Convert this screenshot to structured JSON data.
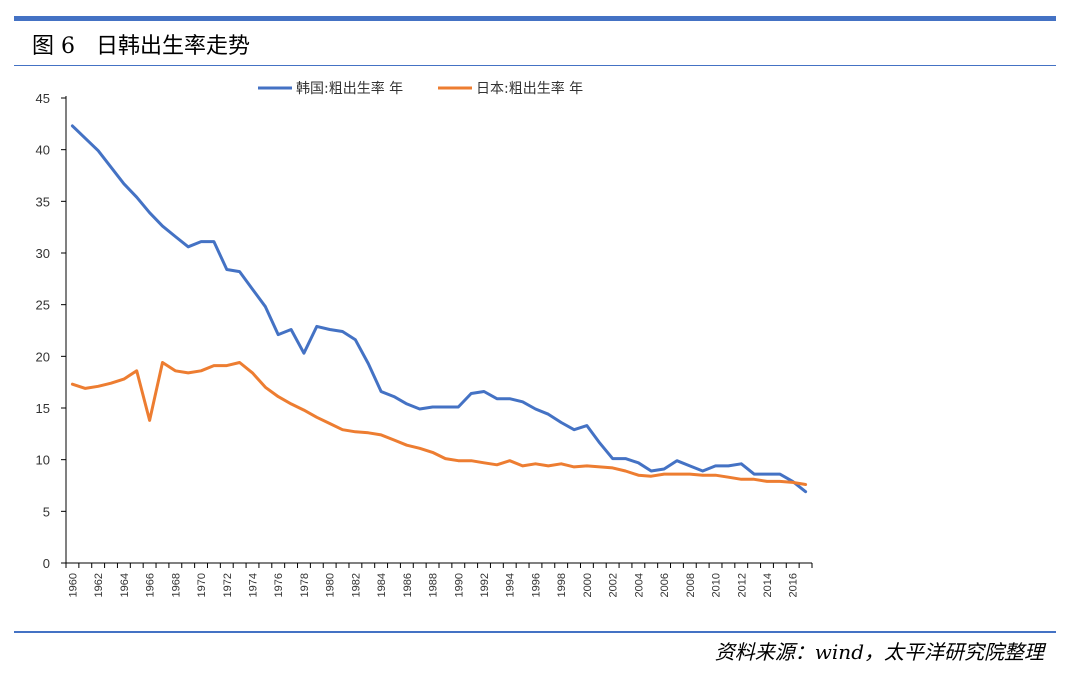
{
  "figure": {
    "title": "图 6   日韩出生率走势",
    "source": "资料来源：wind，太平洋研究院整理"
  },
  "chart_data": {
    "type": "line",
    "title": "",
    "xlabel": "",
    "ylabel": "",
    "ylim": [
      0,
      45
    ],
    "yticks": [
      0,
      5,
      10,
      15,
      20,
      25,
      30,
      35,
      40,
      45
    ],
    "xticks": [
      "1960",
      "1962",
      "1964",
      "1966",
      "1968",
      "1970",
      "1972",
      "1974",
      "1976",
      "1978",
      "1980",
      "1982",
      "1984",
      "1986",
      "1988",
      "1990",
      "1992",
      "1994",
      "1996",
      "1998",
      "2000",
      "2002",
      "2004",
      "2006",
      "2008",
      "2010",
      "2012",
      "2014",
      "2016"
    ],
    "legend_position": "top",
    "grid": false,
    "x": [
      1960,
      1961,
      1962,
      1963,
      1964,
      1965,
      1966,
      1967,
      1968,
      1969,
      1970,
      1971,
      1972,
      1973,
      1974,
      1975,
      1976,
      1977,
      1978,
      1979,
      1980,
      1981,
      1982,
      1983,
      1984,
      1985,
      1986,
      1987,
      1988,
      1989,
      1990,
      1991,
      1992,
      1993,
      1994,
      1995,
      1996,
      1997,
      1998,
      1999,
      2000,
      2001,
      2002,
      2003,
      2004,
      2005,
      2006,
      2007,
      2008,
      2009,
      2010,
      2011,
      2012,
      2013,
      2014,
      2015,
      2016,
      2017
    ],
    "series": [
      {
        "name": "韩国:粗出生率 年",
        "color": "#4472c4",
        "values": [
          42.3,
          41.1,
          39.9,
          38.3,
          36.7,
          35.4,
          33.9,
          32.6,
          31.6,
          30.6,
          31.1,
          31.1,
          28.4,
          28.2,
          26.5,
          24.8,
          22.1,
          22.6,
          20.3,
          22.9,
          22.6,
          22.4,
          21.6,
          19.3,
          16.6,
          16.1,
          15.4,
          14.9,
          15.1,
          15.1,
          15.1,
          16.4,
          16.6,
          15.9,
          15.9,
          15.6,
          14.9,
          14.4,
          13.6,
          12.9,
          13.3,
          11.6,
          10.1,
          10.1,
          9.7,
          8.9,
          9.1,
          9.9,
          9.4,
          8.9,
          9.4,
          9.4,
          9.6,
          8.6,
          8.6,
          8.6,
          7.9,
          6.9
        ]
      },
      {
        "name": "日本:粗出生率 年",
        "color": "#ed7d31",
        "values": [
          17.3,
          16.9,
          17.1,
          17.4,
          17.8,
          18.6,
          13.8,
          19.4,
          18.6,
          18.4,
          18.6,
          19.1,
          19.1,
          19.4,
          18.4,
          17.0,
          16.1,
          15.4,
          14.8,
          14.1,
          13.5,
          12.9,
          12.7,
          12.6,
          12.4,
          11.9,
          11.4,
          11.1,
          10.7,
          10.1,
          9.9,
          9.9,
          9.7,
          9.5,
          9.9,
          9.4,
          9.6,
          9.4,
          9.6,
          9.3,
          9.4,
          9.3,
          9.2,
          8.9,
          8.5,
          8.4,
          8.6,
          8.6,
          8.6,
          8.5,
          8.5,
          8.3,
          8.1,
          8.1,
          7.9,
          7.9,
          7.8,
          7.6
        ]
      }
    ]
  }
}
